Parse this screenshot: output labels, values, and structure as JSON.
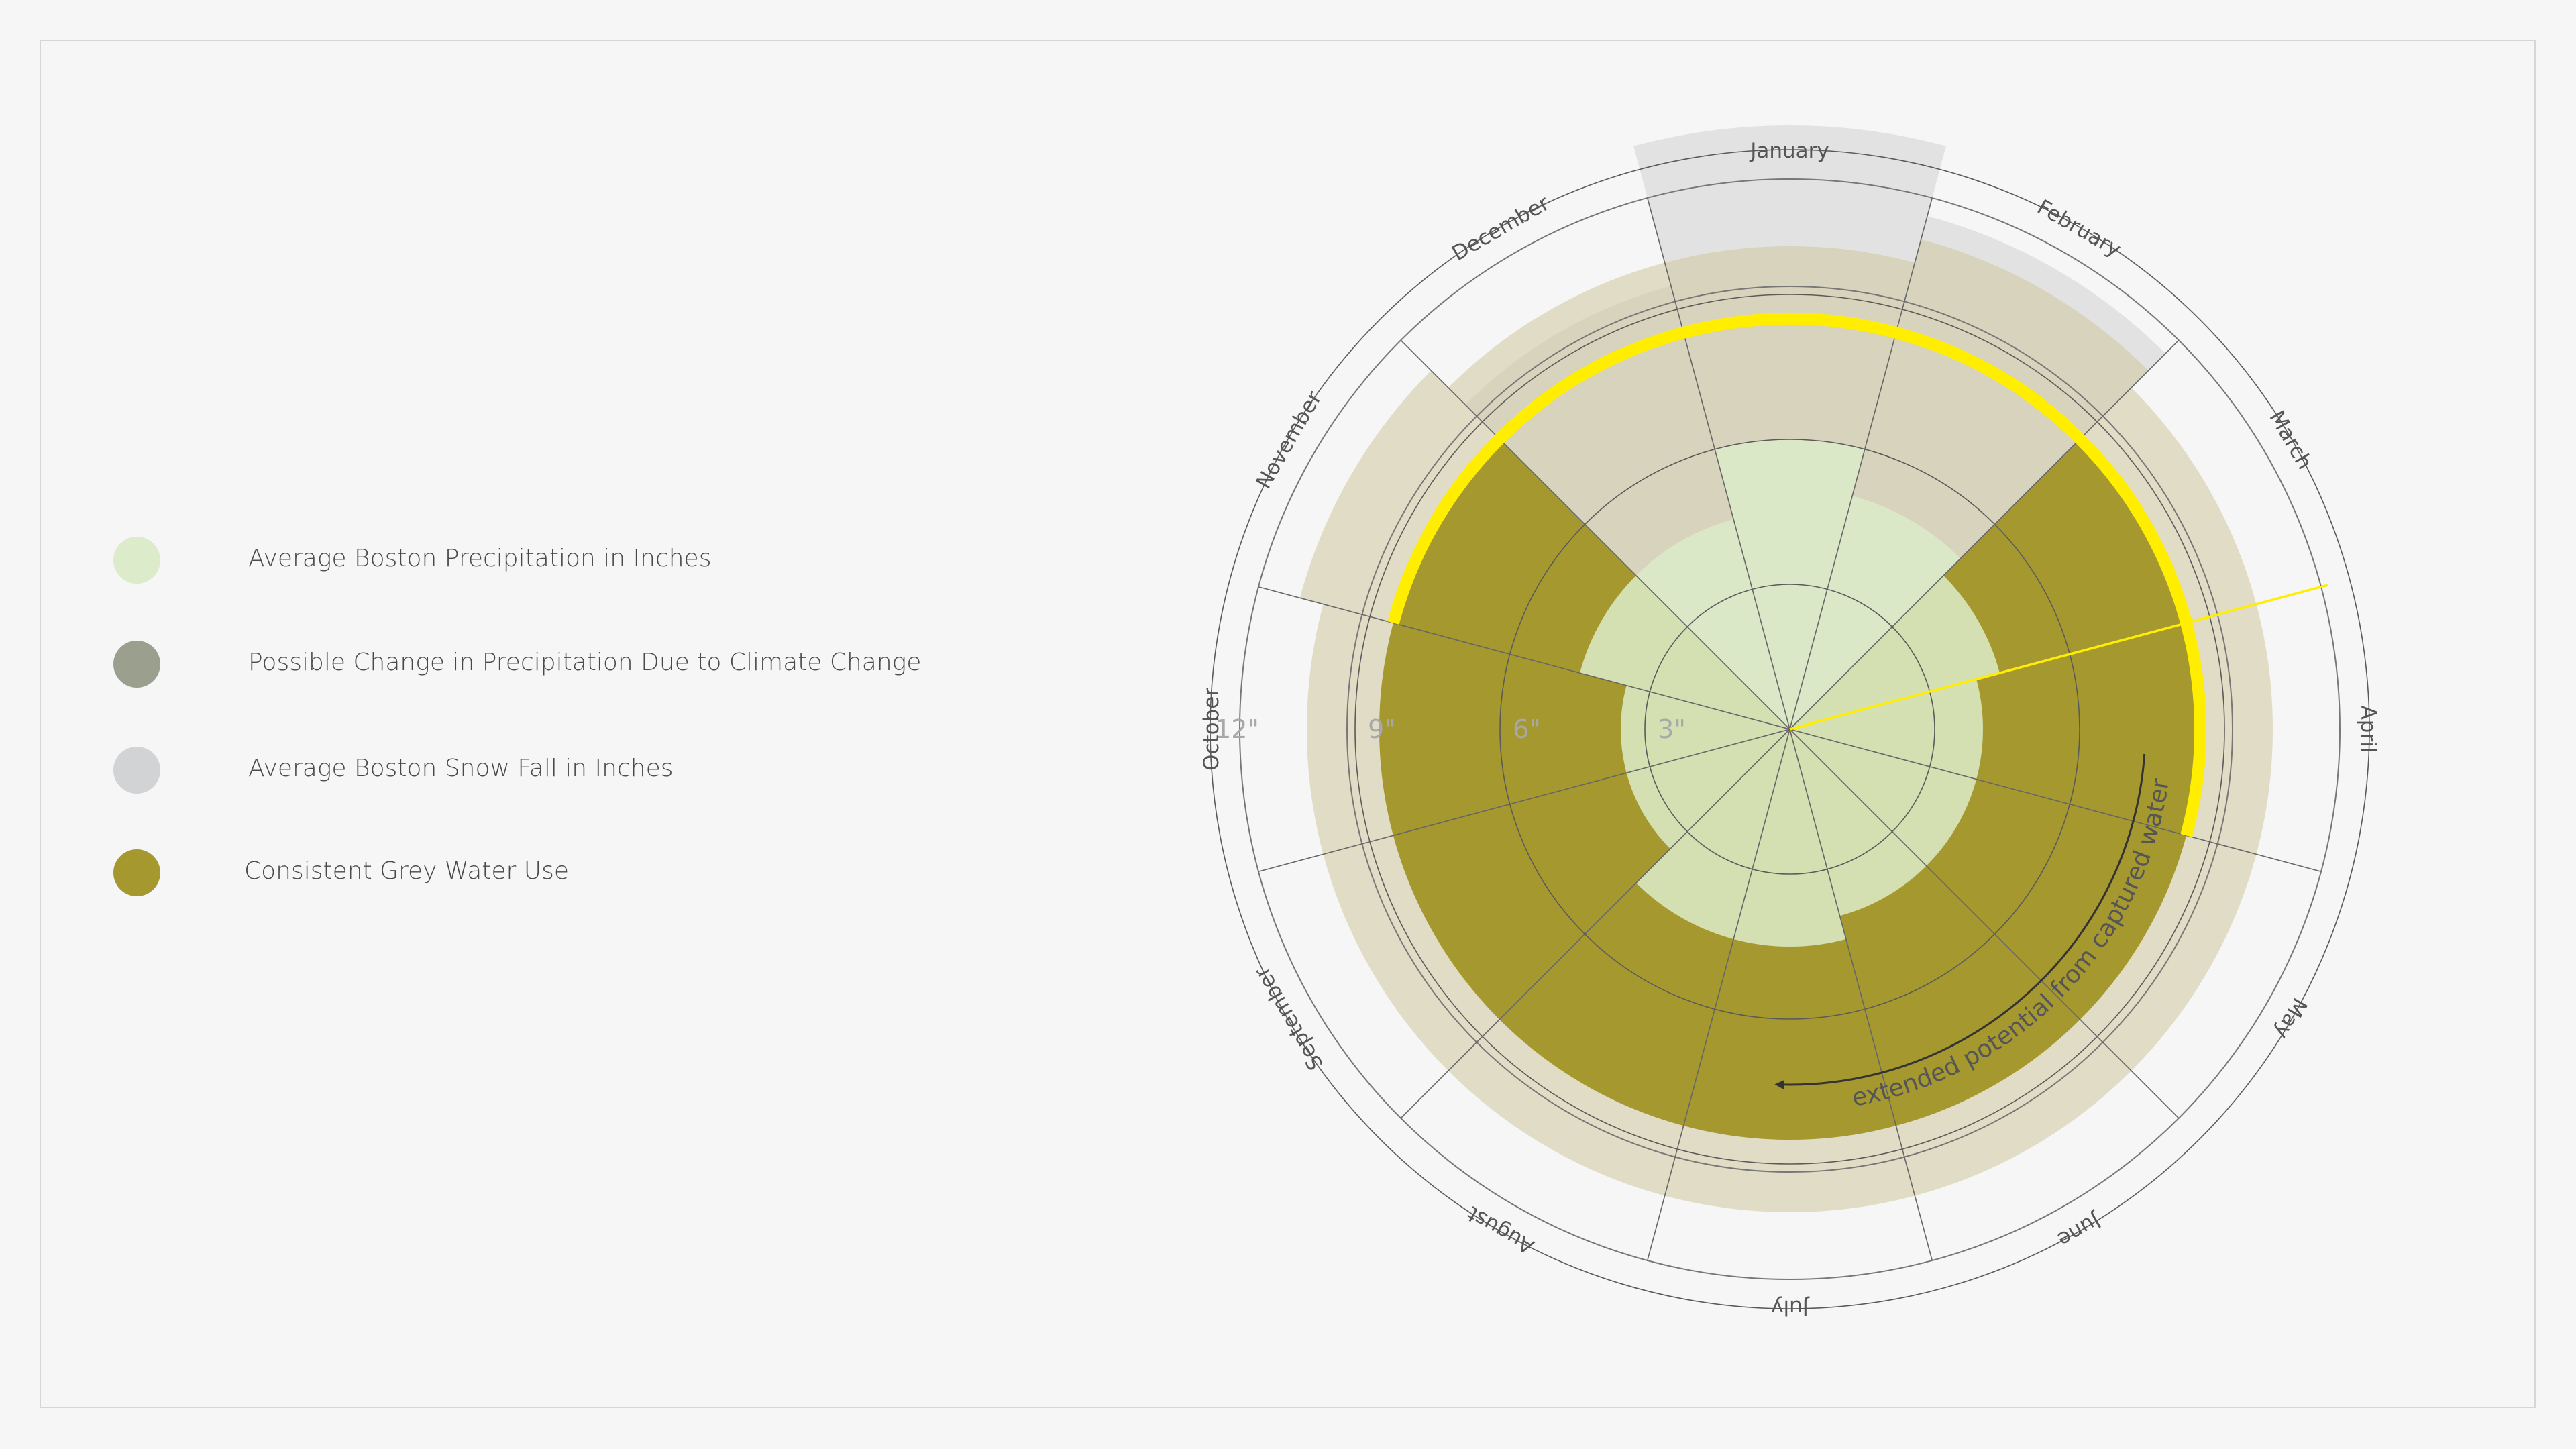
{
  "legend": {
    "items": [
      {
        "label": "Average Boston Precipitation in Inches",
        "color": "#dcebc9"
      },
      {
        "label": "Possible Change in Precipitation Due to Climate Change",
        "color": "#9a9f8e"
      },
      {
        "label": "Average Boston Snow Fall in Inches",
        "color": "#d2d3d4"
      },
      {
        "label": "Consistent Grey Water Use",
        "color": "#a5982f"
      }
    ]
  },
  "chart_data": {
    "type": "radial-bar",
    "categories": [
      "January",
      "February",
      "March",
      "April",
      "May",
      "June",
      "July",
      "August",
      "September",
      "October",
      "November",
      "December"
    ],
    "ring_ticks": [
      3,
      6,
      9,
      12
    ],
    "ring_tick_labels": [
      "3\"",
      "6\"",
      "9\"",
      "12\""
    ],
    "rmax": 15,
    "series": [
      {
        "name": "Average Boston Snow Fall in Inches",
        "values": [
          12.5,
          11.0,
          7.5,
          1.0,
          0,
          0,
          0,
          0,
          0,
          0,
          1.5,
          9.5
        ]
      },
      {
        "name": "Possible Change in Precipitation Due to Climate Change",
        "values": [
          10.0,
          10.5,
          10.0,
          10.0,
          10.0,
          10.0,
          10.0,
          10.0,
          10.0,
          10.0,
          10.5,
          10.0
        ]
      },
      {
        "name": "Average Boston Precipitation in Inches",
        "values": [
          6.0,
          5.0,
          4.5,
          4.0,
          4.0,
          4.0,
          4.5,
          4.5,
          3.5,
          3.5,
          4.5,
          4.5
        ]
      },
      {
        "name": "Consistent Grey Water Use",
        "values": [
          null,
          null,
          8.5,
          8.5,
          8.5,
          8.5,
          8.5,
          8.5,
          8.5,
          8.5,
          8.5,
          null
        ]
      }
    ],
    "highlight": {
      "from_month": "November",
      "to_month": "April",
      "value": 8.5,
      "color": "#ffee00"
    },
    "divider_color": "#ffee00",
    "annotation": "extended potential from captured water"
  }
}
